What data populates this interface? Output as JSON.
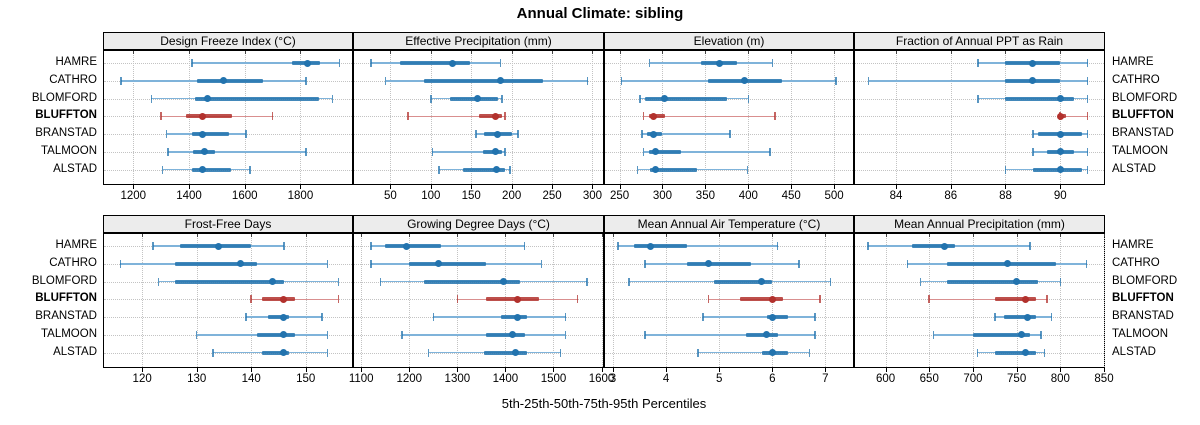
{
  "title": "Annual Climate: sibling",
  "xlabel": "5th-25th-50th-75th-95th Percentiles",
  "stations": [
    "HAMRE",
    "CATHRO",
    "BLOMFORD",
    "BLUFFTON",
    "BRANSTAD",
    "TALMOON",
    "ALSTAD"
  ],
  "highlight_station": "BLUFFTON",
  "percentile_labels": [
    "5th",
    "25th",
    "50th",
    "75th",
    "95th"
  ],
  "colors": {
    "blue_main": "#2273ae",
    "blue_light": "#7fb3da",
    "red_main": "#b2312d",
    "red_light": "#d98f8f",
    "grid": "#c3c3c3",
    "strip_bg": "#ececec",
    "border": "#000000"
  },
  "chart_data": [
    {
      "type": "interval-dotplot",
      "title": "Design Freeze Index (°C)",
      "grid_row": 0,
      "grid_col": 0,
      "axis_range": [
        1095,
        1985
      ],
      "axis_ticks": [
        1200,
        1400,
        1600,
        1800
      ],
      "series": [
        {
          "station": "HAMRE",
          "values": [
            1410,
            1770,
            1825,
            1870,
            1940
          ]
        },
        {
          "station": "CATHRO",
          "values": [
            1155,
            1430,
            1525,
            1665,
            1820
          ]
        },
        {
          "station": "BLOMFORD",
          "values": [
            1265,
            1420,
            1465,
            1865,
            1915
          ]
        },
        {
          "station": "BLUFFTON",
          "values": [
            1300,
            1390,
            1450,
            1555,
            1700
          ]
        },
        {
          "station": "BRANSTAD",
          "values": [
            1320,
            1410,
            1450,
            1545,
            1605
          ]
        },
        {
          "station": "TALMOON",
          "values": [
            1325,
            1415,
            1455,
            1495,
            1820
          ]
        },
        {
          "station": "ALSTAD",
          "values": [
            1305,
            1410,
            1450,
            1550,
            1620
          ]
        }
      ]
    },
    {
      "type": "interval-dotplot",
      "title": "Effective Precipitation (mm)",
      "grid_row": 0,
      "grid_col": 1,
      "axis_range": [
        5,
        313
      ],
      "axis_ticks": [
        50,
        100,
        150,
        200,
        250,
        300
      ],
      "series": [
        {
          "station": "HAMRE",
          "values": [
            26,
            62,
            127,
            148,
            186
          ]
        },
        {
          "station": "CATHRO",
          "values": [
            44,
            92,
            186,
            239,
            294
          ]
        },
        {
          "station": "BLOMFORD",
          "values": [
            100,
            124,
            158,
            183,
            188
          ]
        },
        {
          "station": "BLUFFTON",
          "values": [
            72,
            160,
            180,
            188,
            192
          ]
        },
        {
          "station": "BRANSTAD",
          "values": [
            156,
            166,
            183,
            201,
            208
          ]
        },
        {
          "station": "TALMOON",
          "values": [
            102,
            164,
            180,
            188,
            192
          ]
        },
        {
          "station": "ALSTAD",
          "values": [
            110,
            140,
            181,
            192,
            198
          ]
        }
      ]
    },
    {
      "type": "interval-dotplot",
      "title": "Elevation (m)",
      "grid_row": 0,
      "grid_col": 2,
      "axis_range": [
        233,
        522
      ],
      "axis_ticks": [
        250,
        300,
        350,
        400,
        450,
        500
      ],
      "series": [
        {
          "station": "HAMRE",
          "values": [
            285,
            345,
            366,
            387,
            428
          ]
        },
        {
          "station": "CATHRO",
          "values": [
            252,
            353,
            396,
            439,
            502
          ]
        },
        {
          "station": "BLOMFORD",
          "values": [
            274,
            280,
            302,
            375,
            400
          ]
        },
        {
          "station": "BLUFFTON",
          "values": [
            278,
            284,
            290,
            303,
            431
          ]
        },
        {
          "station": "BRANSTAD",
          "values": [
            276,
            282,
            289,
            299,
            379
          ]
        },
        {
          "station": "TALMOON",
          "values": [
            278,
            284,
            292,
            322,
            425
          ]
        },
        {
          "station": "ALSTAD",
          "values": [
            271,
            285,
            292,
            340,
            399
          ]
        }
      ]
    },
    {
      "type": "interval-dotplot",
      "title": "Fraction of Annual PPT as Rain",
      "grid_row": 0,
      "grid_col": 3,
      "axis_range": [
        82.5,
        91.6
      ],
      "axis_ticks": [
        84,
        86,
        88,
        90
      ],
      "series": [
        {
          "station": "HAMRE",
          "values": [
            87,
            88,
            89,
            90,
            91
          ]
        },
        {
          "station": "CATHRO",
          "values": [
            83,
            88,
            89,
            90,
            91
          ]
        },
        {
          "station": "BLOMFORD",
          "values": [
            87,
            88,
            90,
            90.5,
            91
          ]
        },
        {
          "station": "BLUFFTON",
          "values": [
            90,
            90,
            90,
            90.2,
            91
          ]
        },
        {
          "station": "BRANSTAD",
          "values": [
            89,
            89.2,
            90,
            90.8,
            91
          ]
        },
        {
          "station": "TALMOON",
          "values": [
            89,
            89.5,
            90,
            90.5,
            91
          ]
        },
        {
          "station": "ALSTAD",
          "values": [
            88,
            89,
            90,
            90.8,
            91
          ]
        }
      ]
    },
    {
      "type": "interval-dotplot",
      "title": "Frost-Free Days",
      "grid_row": 1,
      "grid_col": 0,
      "axis_range": [
        113,
        158.5
      ],
      "axis_ticks": [
        120,
        130,
        140,
        150
      ],
      "series": [
        {
          "station": "HAMRE",
          "values": [
            122,
            127,
            134,
            140,
            146
          ]
        },
        {
          "station": "CATHRO",
          "values": [
            116,
            126,
            138,
            141,
            154
          ]
        },
        {
          "station": "BLOMFORD",
          "values": [
            123,
            126,
            144,
            146,
            156
          ]
        },
        {
          "station": "BLUFFTON",
          "values": [
            140,
            142,
            146,
            148,
            156
          ]
        },
        {
          "station": "BRANSTAD",
          "values": [
            139,
            143,
            146,
            147,
            153
          ]
        },
        {
          "station": "TALMOON",
          "values": [
            130,
            141,
            146,
            148,
            154
          ]
        },
        {
          "station": "ALSTAD",
          "values": [
            133,
            142,
            146,
            147,
            154
          ]
        }
      ]
    },
    {
      "type": "interval-dotplot",
      "title": "Growing Degree Days (°C)",
      "grid_row": 1,
      "grid_col": 1,
      "axis_range": [
        1085,
        1603
      ],
      "axis_ticks": [
        1100,
        1200,
        1300,
        1400,
        1500,
        1600
      ],
      "series": [
        {
          "station": "HAMRE",
          "values": [
            1120,
            1150,
            1195,
            1265,
            1440
          ]
        },
        {
          "station": "CATHRO",
          "values": [
            1120,
            1200,
            1260,
            1360,
            1475
          ]
        },
        {
          "station": "BLOMFORD",
          "values": [
            1140,
            1230,
            1395,
            1430,
            1570
          ]
        },
        {
          "station": "BLUFFTON",
          "values": [
            1300,
            1360,
            1425,
            1470,
            1550
          ]
        },
        {
          "station": "BRANSTAD",
          "values": [
            1250,
            1390,
            1425,
            1445,
            1525
          ]
        },
        {
          "station": "TALMOON",
          "values": [
            1185,
            1360,
            1415,
            1440,
            1525
          ]
        },
        {
          "station": "ALSTAD",
          "values": [
            1240,
            1355,
            1420,
            1445,
            1515
          ]
        }
      ]
    },
    {
      "type": "interval-dotplot",
      "title": "Mean Annual Air Temperature (°C)",
      "grid_row": 1,
      "grid_col": 2,
      "axis_range": [
        2.85,
        7.52
      ],
      "axis_ticks": [
        3,
        4,
        5,
        6,
        7
      ],
      "series": [
        {
          "station": "HAMRE",
          "values": [
            3.1,
            3.4,
            3.7,
            4.4,
            6.1
          ]
        },
        {
          "station": "CATHRO",
          "values": [
            3.6,
            4.4,
            4.8,
            5.6,
            6.5
          ]
        },
        {
          "station": "BLOMFORD",
          "values": [
            3.3,
            4.9,
            5.8,
            6.0,
            7.1
          ]
        },
        {
          "station": "BLUFFTON",
          "values": [
            4.8,
            5.4,
            6.0,
            6.2,
            6.9
          ]
        },
        {
          "station": "BRANSTAD",
          "values": [
            4.7,
            5.9,
            6.0,
            6.3,
            6.8
          ]
        },
        {
          "station": "TALMOON",
          "values": [
            3.6,
            5.5,
            5.9,
            6.1,
            6.8
          ]
        },
        {
          "station": "ALSTAD",
          "values": [
            4.6,
            5.8,
            6.0,
            6.3,
            6.7
          ]
        }
      ]
    },
    {
      "type": "interval-dotplot",
      "title": "Mean Annual Precipitation (mm)",
      "grid_row": 1,
      "grid_col": 3,
      "axis_range": [
        565,
        850
      ],
      "axis_ticks": [
        600,
        650,
        700,
        750,
        800,
        850
      ],
      "series": [
        {
          "station": "HAMRE",
          "values": [
            580,
            630,
            668,
            680,
            765
          ]
        },
        {
          "station": "CATHRO",
          "values": [
            625,
            670,
            740,
            795,
            830
          ]
        },
        {
          "station": "BLOMFORD",
          "values": [
            640,
            670,
            750,
            775,
            800
          ]
        },
        {
          "station": "BLUFFTON",
          "values": [
            650,
            725,
            760,
            772,
            785
          ]
        },
        {
          "station": "BRANSTAD",
          "values": [
            725,
            735,
            762,
            772,
            790
          ]
        },
        {
          "station": "TALMOON",
          "values": [
            655,
            700,
            755,
            765,
            778
          ]
        },
        {
          "station": "ALSTAD",
          "values": [
            705,
            725,
            760,
            772,
            782
          ]
        }
      ]
    }
  ]
}
